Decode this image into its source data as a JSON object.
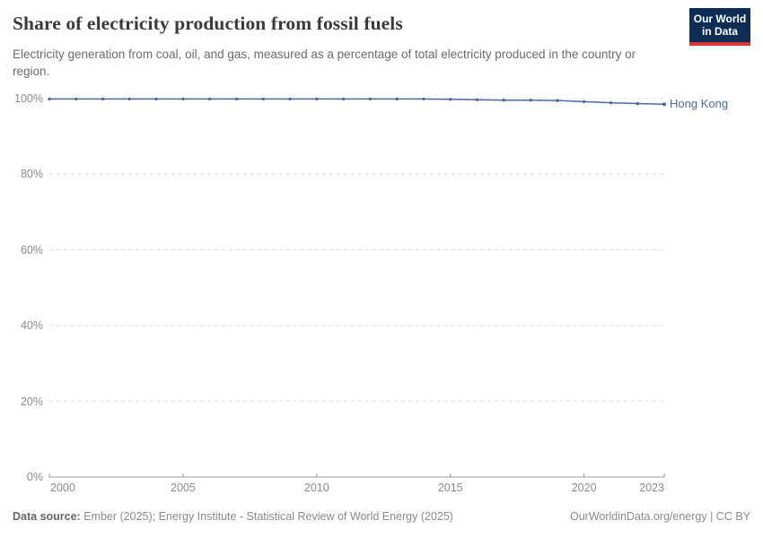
{
  "header": {
    "title": "Share of electricity production from fossil fuels",
    "subtitle": "Electricity generation from coal, oil, and gas, measured as a percentage of total electricity produced in the country or region.",
    "logo": {
      "line1": "Our World",
      "line2": "in Data",
      "bg_color": "#0d2d55",
      "accent_color": "#d7352e"
    }
  },
  "chart_data": {
    "type": "line",
    "title": "Share of electricity production from fossil fuels",
    "xlabel": "",
    "ylabel": "",
    "xlim": [
      2000,
      2023
    ],
    "ylim": [
      0,
      100
    ],
    "grid": "horizontal-dashed",
    "legend_position": "end-of-line-label",
    "x": [
      2000,
      2001,
      2002,
      2003,
      2004,
      2005,
      2006,
      2007,
      2008,
      2009,
      2010,
      2011,
      2012,
      2013,
      2014,
      2015,
      2016,
      2017,
      2018,
      2019,
      2020,
      2021,
      2022,
      2023
    ],
    "series": [
      {
        "name": "Hong Kong",
        "color": "#4c6a9f",
        "values": [
          99.9,
          99.9,
          99.9,
          99.9,
          99.9,
          99.9,
          99.9,
          99.9,
          99.9,
          99.9,
          99.9,
          99.9,
          99.9,
          99.9,
          99.9,
          99.8,
          99.7,
          99.6,
          99.6,
          99.5,
          99.2,
          98.9,
          98.7,
          98.5
        ]
      }
    ],
    "yticks": {
      "values": [
        0,
        20,
        40,
        60,
        80,
        100
      ],
      "labels": [
        "0%",
        "20%",
        "40%",
        "60%",
        "80%",
        "100%"
      ]
    },
    "xticks": {
      "values": [
        2000,
        2005,
        2010,
        2015,
        2020,
        2023
      ],
      "labels": [
        "2000",
        "2005",
        "2010",
        "2015",
        "2020",
        "2023"
      ]
    }
  },
  "footer": {
    "source_label": "Data source:",
    "source_text": "Ember (2025); Energy Institute - Statistical Review of World Energy (2025)",
    "credit": "OurWorldinData.org/energy | CC BY"
  },
  "colors": {
    "grid": "#dcdcdc",
    "axis": "#999999",
    "tick_text": "#8a8a8a",
    "title_text": "#3a3a3a",
    "subtitle_text": "#6b6b6b",
    "footer_text": "#8a8a8a",
    "logo_bg": "#0d2d55",
    "logo_accent": "#d7352e",
    "series_line": "#4c6a9f"
  }
}
